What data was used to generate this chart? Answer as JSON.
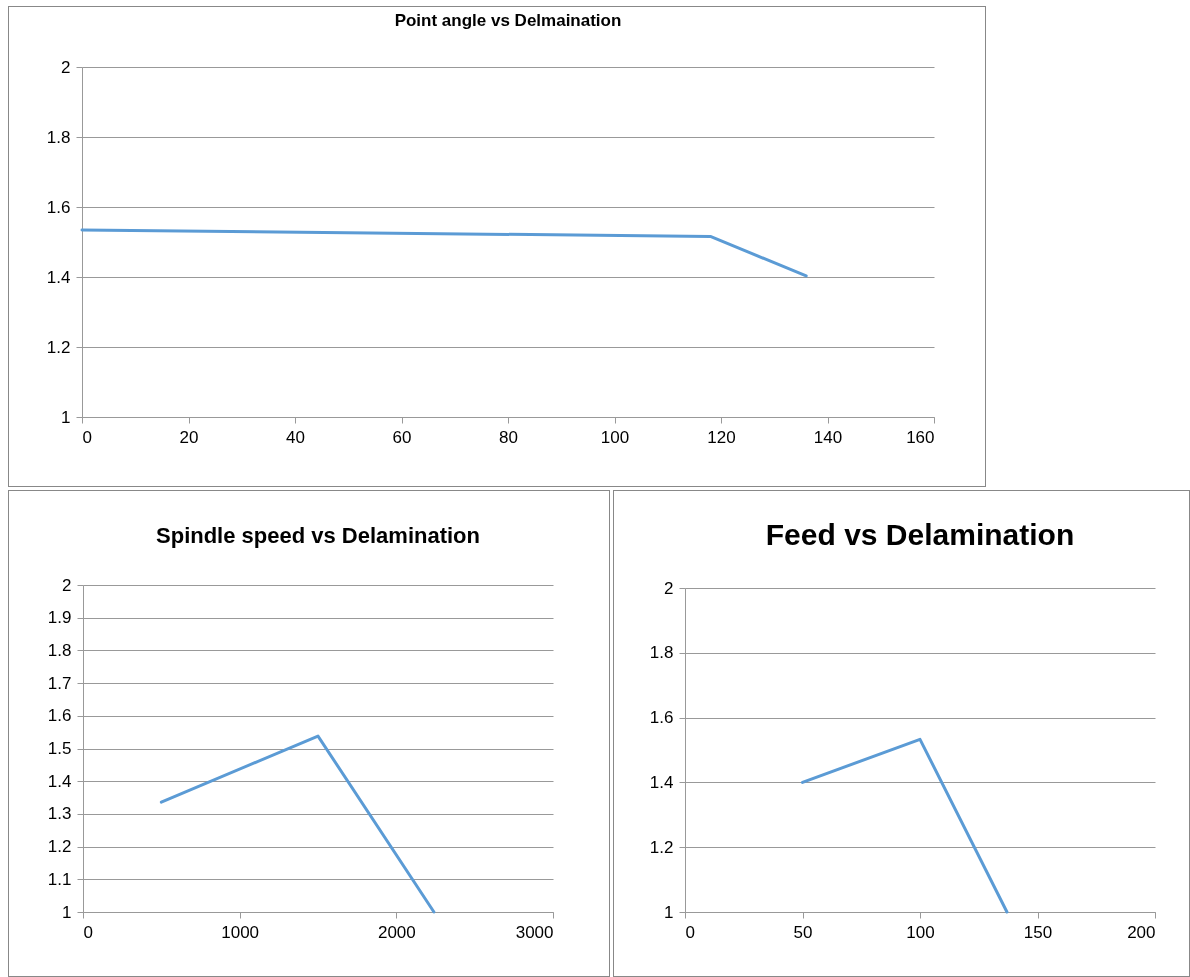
{
  "chart_data": [
    {
      "type": "line",
      "title": "Point angle vs Delmaination",
      "x": [
        0,
        118,
        136
      ],
      "series": [
        {
          "color": "#5b9bd5",
          "values": [
            1.534,
            1.516,
            1.403
          ]
        }
      ],
      "xlim": [
        0,
        160
      ],
      "xticks": [
        0,
        20,
        40,
        60,
        80,
        100,
        120,
        140,
        160
      ],
      "ylim": [
        1,
        2
      ],
      "yticks": [
        1,
        1.2,
        1.4,
        1.6,
        1.8,
        2
      ],
      "grid": "y",
      "marker": "none"
    },
    {
      "type": "line",
      "title": "Spindle speed vs Delamination",
      "x": [
        500,
        1500,
        2240
      ],
      "series": [
        {
          "color": "#5b9bd5",
          "values": [
            1.336,
            1.538,
            1.0
          ]
        }
      ],
      "xlim": [
        0,
        3000
      ],
      "xticks": [
        0,
        1000,
        2000,
        3000
      ],
      "ylim": [
        1,
        2
      ],
      "yticks": [
        1,
        1.1,
        1.2,
        1.3,
        1.4,
        1.5,
        1.6,
        1.7,
        1.8,
        1.9,
        2
      ],
      "grid": "y",
      "marker": "none"
    },
    {
      "type": "line",
      "title": "Feed vs Delamination",
      "x": [
        50,
        100,
        137
      ],
      "series": [
        {
          "color": "#5b9bd5",
          "values": [
            1.4,
            1.533,
            1.0
          ]
        }
      ],
      "xlim": [
        0,
        200
      ],
      "xticks": [
        0,
        50,
        100,
        150,
        200
      ],
      "ylim": [
        1,
        2
      ],
      "yticks": [
        1,
        1.2,
        1.4,
        1.6,
        1.8,
        2
      ],
      "grid": "y",
      "marker": "none"
    }
  ]
}
